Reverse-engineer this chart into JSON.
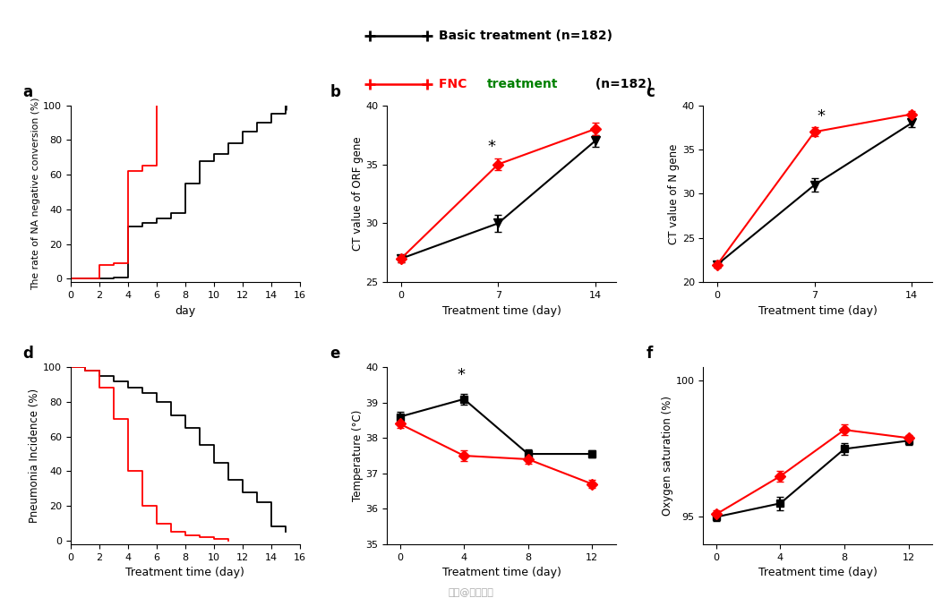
{
  "legend": {
    "basic_label": "Basic treatment (n=182)",
    "black_color": "#000000",
    "red_color": "#FF0000",
    "green_color": "#008000"
  },
  "panel_a": {
    "label": "a",
    "xlabel": "day",
    "ylabel": "The rate of NA negative conversion (%)",
    "xlim": [
      0,
      16
    ],
    "ylim": [
      -2,
      100
    ],
    "xticks": [
      0,
      2,
      4,
      6,
      8,
      10,
      12,
      14,
      16
    ],
    "yticks": [
      0,
      20,
      40,
      60,
      80,
      100
    ],
    "black_x": [
      0,
      2,
      3,
      4,
      5,
      6,
      7,
      8,
      9,
      10,
      11,
      12,
      13,
      14,
      15
    ],
    "black_y": [
      0,
      0,
      1,
      30,
      32,
      35,
      38,
      55,
      68,
      72,
      78,
      85,
      90,
      95,
      100
    ],
    "red_x": [
      0,
      2,
      3,
      4,
      5,
      6
    ],
    "red_y": [
      0,
      8,
      9,
      62,
      65,
      100
    ],
    "censor_x": 15,
    "censor_y": 100
  },
  "panel_b": {
    "label": "b",
    "xlabel": "Treatment time (day)",
    "ylabel": "CT value of ORF gene",
    "xlim": [
      -1,
      15.5
    ],
    "ylim": [
      25,
      40
    ],
    "xticks": [
      0,
      7,
      14
    ],
    "yticks": [
      25,
      30,
      35,
      40
    ],
    "black_x": [
      0,
      7,
      14
    ],
    "black_y": [
      27.0,
      30.0,
      37.0
    ],
    "black_err": [
      0.3,
      0.7,
      0.5
    ],
    "red_x": [
      0,
      7,
      14
    ],
    "red_y": [
      27.0,
      35.0,
      38.0
    ],
    "red_err": [
      0.3,
      0.5,
      0.5
    ],
    "star_x": 6.5,
    "star_y": 35.8,
    "black_marker": "v",
    "red_marker": "D"
  },
  "panel_c": {
    "label": "c",
    "xlabel": "Treatment time (day)",
    "ylabel": "CT value of N gene",
    "xlim": [
      -1,
      15.5
    ],
    "ylim": [
      20,
      40
    ],
    "xticks": [
      0,
      7,
      14
    ],
    "yticks": [
      20,
      25,
      30,
      35,
      40
    ],
    "black_x": [
      0,
      7,
      14
    ],
    "black_y": [
      22.0,
      31.0,
      38.0
    ],
    "black_err": [
      0.3,
      0.8,
      0.5
    ],
    "red_x": [
      0,
      7,
      14
    ],
    "red_y": [
      22.0,
      37.0,
      39.0
    ],
    "red_err": [
      0.3,
      0.5,
      0.4
    ],
    "star_x": 7.5,
    "star_y": 37.8,
    "black_marker": "v",
    "red_marker": "D"
  },
  "panel_d": {
    "label": "d",
    "xlabel": "Treatment time (day)",
    "ylabel": "Pneumonia Incidence (%)",
    "xlim": [
      0,
      16
    ],
    "ylim": [
      -2,
      100
    ],
    "xticks": [
      0,
      2,
      4,
      6,
      8,
      10,
      12,
      14,
      16
    ],
    "yticks": [
      0,
      20,
      40,
      60,
      80,
      100
    ],
    "black_x": [
      0,
      1,
      2,
      3,
      4,
      5,
      6,
      7,
      8,
      9,
      10,
      11,
      12,
      13,
      14,
      15
    ],
    "black_y": [
      100,
      98,
      95,
      92,
      88,
      85,
      80,
      72,
      65,
      55,
      45,
      35,
      28,
      22,
      8,
      5
    ],
    "red_x": [
      0,
      1,
      2,
      3,
      4,
      5,
      6,
      7,
      8,
      9,
      10,
      11
    ],
    "red_y": [
      100,
      98,
      88,
      70,
      40,
      20,
      10,
      5,
      3,
      2,
      1,
      0
    ]
  },
  "panel_e": {
    "label": "e",
    "xlabel": "Treatment time (day)",
    "ylabel": "Temperature (°C)",
    "xlim": [
      -0.8,
      13.5
    ],
    "ylim": [
      35,
      40
    ],
    "xticks": [
      0,
      4,
      8,
      12
    ],
    "yticks": [
      35,
      36,
      37,
      38,
      39,
      40
    ],
    "black_x": [
      0,
      4,
      8,
      12
    ],
    "black_y": [
      38.6,
      39.1,
      37.55,
      37.55
    ],
    "black_err": [
      0.15,
      0.15,
      0.12,
      0.1
    ],
    "red_x": [
      0,
      4,
      8,
      12
    ],
    "red_y": [
      38.4,
      37.5,
      37.4,
      36.7
    ],
    "red_err": [
      0.12,
      0.15,
      0.12,
      0.12
    ],
    "star_x": 3.8,
    "star_y": 39.55,
    "black_marker": "s",
    "red_marker": "D"
  },
  "panel_f": {
    "label": "f",
    "xlabel": "Treatment time (day)",
    "ylabel": "Oxygen saturation (%)",
    "xlim": [
      -0.8,
      13.5
    ],
    "ylim": [
      94.0,
      100.5
    ],
    "xticks": [
      0,
      4,
      8,
      12
    ],
    "yticks": [
      95,
      100
    ],
    "black_x": [
      0,
      4,
      8,
      12
    ],
    "black_y": [
      95.0,
      95.5,
      97.5,
      97.8
    ],
    "black_err": [
      0.15,
      0.25,
      0.2,
      0.15
    ],
    "red_x": [
      0,
      4,
      8,
      12
    ],
    "red_y": [
      95.1,
      96.5,
      98.2,
      97.9
    ],
    "red_err": [
      0.15,
      0.2,
      0.2,
      0.12
    ],
    "black_marker": "s",
    "red_marker": "D"
  }
}
